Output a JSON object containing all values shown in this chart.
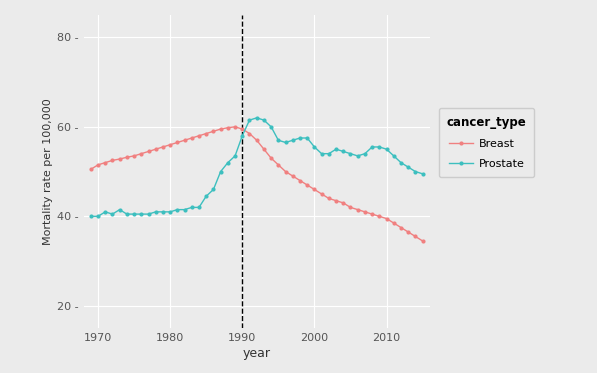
{
  "breast_years": [
    1969,
    1970,
    1971,
    1972,
    1973,
    1974,
    1975,
    1976,
    1977,
    1978,
    1979,
    1980,
    1981,
    1982,
    1983,
    1984,
    1985,
    1986,
    1987,
    1988,
    1989,
    1990,
    1991,
    1992,
    1993,
    1994,
    1995,
    1996,
    1997,
    1998,
    1999,
    2000,
    2001,
    2002,
    2003,
    2004,
    2005,
    2006,
    2007,
    2008,
    2009,
    2010,
    2011,
    2012,
    2013,
    2014,
    2015
  ],
  "breast_values": [
    50.5,
    51.5,
    52.0,
    52.5,
    52.8,
    53.2,
    53.5,
    54.0,
    54.5,
    55.0,
    55.5,
    56.0,
    56.5,
    57.0,
    57.5,
    58.0,
    58.5,
    59.0,
    59.5,
    59.8,
    60.0,
    59.5,
    58.5,
    57.0,
    55.0,
    53.0,
    51.5,
    50.0,
    49.0,
    48.0,
    47.0,
    46.0,
    45.0,
    44.0,
    43.5,
    43.0,
    42.0,
    41.5,
    41.0,
    40.5,
    40.0,
    39.5,
    38.5,
    37.5,
    36.5,
    35.5,
    34.5
  ],
  "prostate_years": [
    1969,
    1970,
    1971,
    1972,
    1973,
    1974,
    1975,
    1976,
    1977,
    1978,
    1979,
    1980,
    1981,
    1982,
    1983,
    1984,
    1985,
    1986,
    1987,
    1988,
    1989,
    1990,
    1991,
    1992,
    1993,
    1994,
    1995,
    1996,
    1997,
    1998,
    1999,
    2000,
    2001,
    2002,
    2003,
    2004,
    2005,
    2006,
    2007,
    2008,
    2009,
    2010,
    2011,
    2012,
    2013,
    2014,
    2015
  ],
  "prostate_values": [
    40.0,
    40.0,
    41.0,
    40.5,
    41.5,
    40.5,
    40.5,
    40.5,
    40.5,
    41.0,
    41.0,
    41.0,
    41.5,
    41.5,
    42.0,
    42.0,
    44.5,
    46.0,
    50.0,
    52.0,
    53.5,
    58.0,
    61.5,
    62.0,
    61.5,
    60.0,
    57.0,
    56.5,
    57.0,
    57.5,
    57.5,
    55.5,
    54.0,
    54.0,
    55.0,
    54.5,
    54.0,
    53.5,
    54.0,
    55.5,
    55.5,
    55.0,
    53.5,
    52.0,
    51.0,
    50.0,
    49.5
  ],
  "breast_color": "#F08080",
  "prostate_color": "#3DBFBF",
  "vline_x": 1990,
  "xlabel": "year",
  "ylabel": "Mortality rate per 100,000",
  "xlim": [
    1968,
    2016
  ],
  "ylim": [
    15,
    85
  ],
  "yticks": [
    20,
    40,
    60,
    80
  ],
  "xticks": [
    1970,
    1980,
    1990,
    2000,
    2010
  ],
  "bg_color": "#EBEBEB",
  "grid_color": "#FFFFFF",
  "legend_title": "cancer_type",
  "legend_labels": [
    "Breast",
    "Prostate"
  ],
  "marker_size": 3.0,
  "line_width": 1.0
}
